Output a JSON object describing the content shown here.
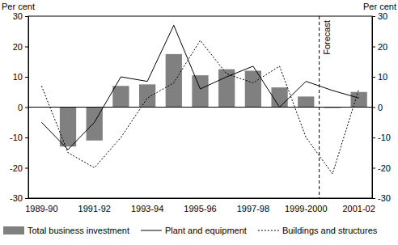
{
  "chart_data": {
    "type": "bar",
    "y_label": "Per cent",
    "y2_label": "Per cent",
    "categories": [
      "1989-90",
      null,
      "1991-92",
      null,
      "1993-94",
      null,
      "1995-96",
      null,
      "1997-98",
      null,
      "1999-2000",
      null,
      "2001-02"
    ],
    "series": [
      {
        "name": "Total business investment",
        "type": "bar",
        "color": "#808080",
        "values": [
          null,
          -13,
          -11,
          7,
          7.5,
          17.5,
          10.5,
          12.5,
          12,
          6.5,
          3.5,
          0,
          5
        ]
      },
      {
        "name": "Plant and equipment",
        "type": "line",
        "color": "#000000",
        "line_style": "solid",
        "values": [
          -5,
          -14,
          -5,
          10,
          8.5,
          27,
          6,
          10,
          13.5,
          0,
          8.5,
          5.5,
          3
        ]
      },
      {
        "name": "Buildings and structures",
        "type": "line",
        "color": "#000000",
        "line_style": "dotted",
        "values": [
          7,
          -15,
          -20,
          -10,
          3,
          8,
          22,
          11,
          8,
          13.5,
          -10,
          -22,
          6
        ]
      }
    ],
    "ylim": [
      -30,
      30
    ],
    "yticks": [
      -30,
      -20,
      -10,
      0,
      10,
      20,
      30
    ],
    "y2lim": [
      -30,
      30
    ],
    "y2ticks": [
      -30,
      -20,
      -10,
      0,
      10,
      20,
      30
    ],
    "annotations": [
      {
        "text": "Forecast",
        "x": 10.5
      }
    ],
    "grid": false,
    "legend": "bottom"
  }
}
